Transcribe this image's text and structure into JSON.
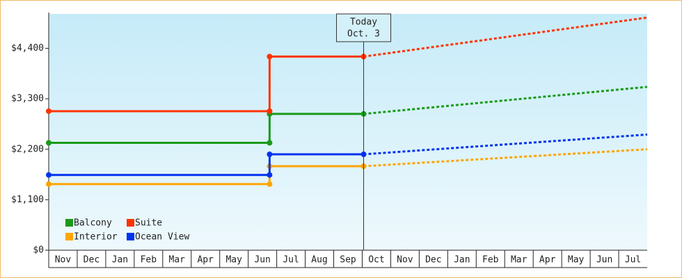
{
  "chart_data": {
    "type": "line",
    "categories": [
      "Nov",
      "Dec",
      "Jan",
      "Feb",
      "Mar",
      "Apr",
      "May",
      "Jun",
      "Jul",
      "Aug",
      "Sep",
      "Oct",
      "Nov",
      "Dec",
      "Jan",
      "Feb",
      "Mar",
      "Apr",
      "May",
      "Jun",
      "Jul"
    ],
    "xlim": [
      0,
      21
    ],
    "ylim": [
      0,
      5150
    ],
    "yticks": [
      {
        "value": 0,
        "label": "$0"
      },
      {
        "value": 1100,
        "label": "$1,100"
      },
      {
        "value": 2200,
        "label": "$2,200"
      },
      {
        "value": 3300,
        "label": "$3,300"
      },
      {
        "value": 4400,
        "label": "$4,400"
      }
    ],
    "today": {
      "lines": [
        "Today",
        "Oct. 3"
      ],
      "x": 11.05
    },
    "legend": "lower left",
    "series": [
      {
        "name": "Balcony",
        "color": "#1a9a1a",
        "x": [
          0,
          7.75,
          7.75,
          11.05,
          21
        ],
        "values": [
          2340,
          2340,
          2970,
          2970,
          3560
        ]
      },
      {
        "name": "Suite",
        "color": "#ff3300",
        "x": [
          0,
          7.75,
          7.75,
          11.05,
          21
        ],
        "values": [
          3030,
          3030,
          4220,
          4220,
          5070
        ]
      },
      {
        "name": "Interior",
        "color": "#ffa500",
        "x": [
          0,
          7.75,
          7.75,
          11.05,
          21
        ],
        "values": [
          1440,
          1440,
          1830,
          1830,
          2200
        ]
      },
      {
        "name": "Ocean View",
        "color": "#0033ee",
        "x": [
          0,
          7.75,
          7.75,
          11.05,
          21
        ],
        "values": [
          1640,
          1640,
          2090,
          2090,
          2520
        ]
      }
    ]
  }
}
